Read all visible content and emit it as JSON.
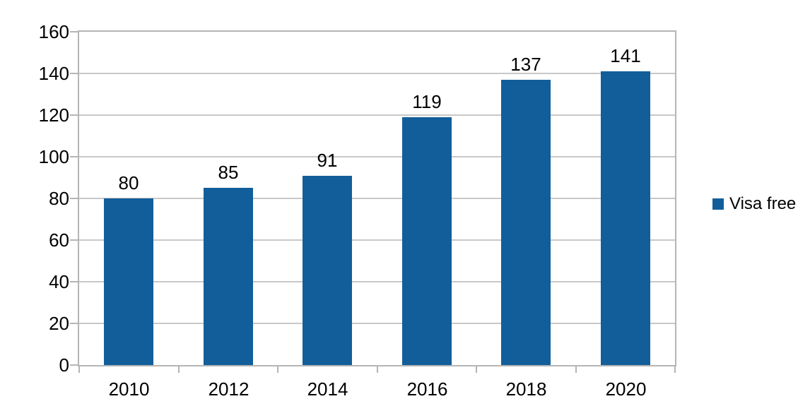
{
  "chart_data": {
    "type": "bar",
    "title": "",
    "xlabel": "",
    "ylabel": "",
    "categories": [
      "2010",
      "2012",
      "2014",
      "2016",
      "2018",
      "2020"
    ],
    "series": [
      {
        "name": "Visa free",
        "color": "#125e9b",
        "values": [
          80,
          85,
          91,
          119,
          137,
          141
        ]
      }
    ],
    "data_labels": [
      "80",
      "85",
      "91",
      "119",
      "137",
      "141"
    ],
    "ylim": [
      0,
      160
    ],
    "ytick_step": 20,
    "ytick_labels": [
      "0",
      "20",
      "40",
      "60",
      "80",
      "100",
      "120",
      "140",
      "160"
    ],
    "grid": true,
    "legend_position": "right",
    "colors": {
      "grid": "#c8c8c8",
      "axis": "#b5b5b5",
      "text": "#000000",
      "background": "#ffffff"
    }
  }
}
